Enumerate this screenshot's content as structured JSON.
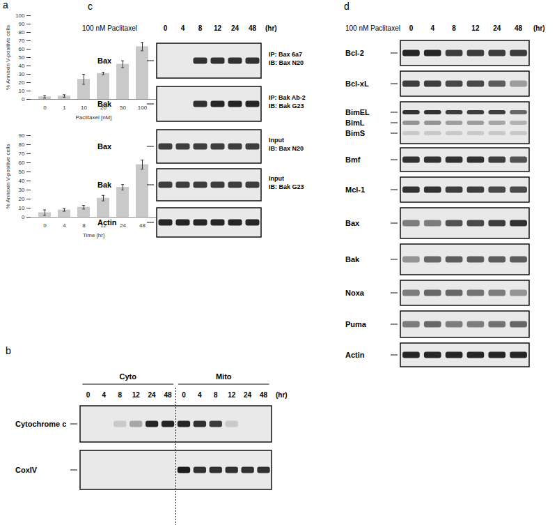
{
  "chart_data": [
    {
      "type": "bar",
      "categories": [
        "0",
        "1",
        "10",
        "20",
        "50",
        "100"
      ],
      "values": [
        3,
        4,
        24,
        31,
        42,
        63
      ],
      "errors": [
        1.5,
        1.5,
        6,
        1.5,
        4,
        5
      ],
      "x_label": "Paclitaxel [nM]",
      "y_label": "% Annexin V-positive cells",
      "ylim": [
        0,
        100
      ],
      "yticks": [
        0,
        10,
        20,
        30,
        40,
        50,
        60,
        70,
        80,
        90,
        100
      ],
      "color": "#c9c9c9",
      "grid": false
    },
    {
      "type": "bar",
      "categories": [
        "0",
        "4",
        "8",
        "12",
        "24",
        "48"
      ],
      "values": [
        5,
        8,
        11,
        21,
        33,
        58
      ],
      "errors": [
        3,
        1.5,
        2,
        3,
        3,
        5
      ],
      "x_label": "Time [hr]",
      "y_label": "% Annexin V-positive cells",
      "ylim": [
        0,
        90
      ],
      "yticks": [
        0,
        10,
        20,
        30,
        40,
        50,
        60,
        70,
        80,
        90
      ],
      "color": "#c9c9c9",
      "grid": false
    }
  ],
  "figure": {
    "panel_a": {
      "label": "a"
    },
    "panel_b": {
      "label": "b",
      "groups": [
        {
          "name": "Cyto",
          "lanes": [
            0,
            4,
            8,
            12,
            24,
            48
          ]
        },
        {
          "name": "Mito",
          "lanes": [
            0,
            4,
            8,
            12,
            24,
            48
          ]
        }
      ],
      "unit": "(hr)",
      "boxes": [
        {
          "bands": [
            {
              "label": "Cytochrome c",
              "intensity": [
                0,
                0,
                0.15,
                0.3,
                0.9,
                0.9,
                0.9,
                0.85,
                0.8,
                0.15,
                0,
                0
              ]
            }
          ]
        },
        {
          "bands": [
            {
              "label": "CoxIV",
              "intensity": [
                0,
                0,
                0,
                0,
                0,
                0,
                0.95,
                0.85,
                0.85,
                0.85,
                0.85,
                0.85
              ]
            }
          ]
        }
      ]
    },
    "panel_c": {
      "label": "c",
      "treatment": "100 nM Paclitaxel",
      "lanes": [
        0,
        4,
        8,
        12,
        24,
        48
      ],
      "unit": "(hr)",
      "boxes": [
        {
          "bands": [
            {
              "label": "Bax",
              "intensity": [
                0,
                0,
                0.85,
                0.85,
                0.85,
                0.85
              ]
            }
          ],
          "note": [
            "IP: Bax 6a7",
            "IB: Bax N20"
          ]
        },
        {
          "bands": [
            {
              "label": "Bak",
              "intensity": [
                0,
                0,
                0.85,
                0.9,
                0.9,
                0.9
              ]
            }
          ],
          "note": [
            "IP: Bak Ab-2",
            "IB: Bak G23"
          ]
        },
        {
          "bands": [
            {
              "label": "Bax",
              "intensity": [
                0.8,
                0.8,
                0.8,
                0.8,
                0.8,
                0.8
              ]
            }
          ],
          "note": [
            "Input",
            "IB: Bax N20"
          ]
        },
        {
          "bands": [
            {
              "label": "Bak",
              "intensity": [
                0.8,
                0.8,
                0.8,
                0.8,
                0.8,
                0.8
              ]
            }
          ],
          "note": [
            "Input",
            "IB: Bak G23"
          ]
        },
        {
          "bands": [
            {
              "label": "Actin",
              "intensity": [
                0.9,
                0.9,
                0.9,
                0.9,
                0.9,
                0.9
              ]
            }
          ]
        }
      ]
    },
    "panel_d": {
      "label": "d",
      "treatment": "100 nM Paclitaxel",
      "lanes": [
        0,
        4,
        8,
        12,
        24,
        48
      ],
      "unit": "(hr)",
      "boxes": [
        {
          "bands": [
            {
              "label": "Bcl-2",
              "intensity": [
                0.9,
                0.9,
                0.8,
                0.8,
                0.8,
                0.8
              ]
            }
          ]
        },
        {
          "bands": [
            {
              "label": "Bcl-xL",
              "intensity": [
                0.8,
                0.8,
                0.75,
                0.75,
                0.65,
                0.35
              ]
            }
          ]
        },
        {
          "bands": [
            {
              "label": "BimEL",
              "intensity": [
                0.85,
                0.85,
                0.8,
                0.8,
                0.8,
                0.6
              ]
            },
            {
              "label": "BimL",
              "intensity": [
                0.4,
                0.4,
                0.35,
                0.35,
                0.3,
                0.25
              ]
            },
            {
              "label": "BimS",
              "intensity": [
                0.15,
                0.15,
                0.15,
                0.15,
                0.15,
                0.15
              ]
            }
          ]
        },
        {
          "bands": [
            {
              "label": "Bmf",
              "intensity": [
                0.85,
                0.85,
                0.85,
                0.85,
                0.8,
                0.7
              ]
            }
          ]
        },
        {
          "bands": [
            {
              "label": "Mcl-1",
              "intensity": [
                0.85,
                0.85,
                0.8,
                0.8,
                0.75,
                0.75
              ]
            }
          ]
        },
        {
          "bands": [
            {
              "label": "Bax",
              "intensity": [
                0.5,
                0.5,
                0.7,
                0.75,
                0.8,
                0.85
              ]
            }
          ]
        },
        {
          "bands": [
            {
              "label": "Bak",
              "intensity": [
                0.4,
                0.6,
                0.65,
                0.65,
                0.65,
                0.65
              ]
            }
          ]
        },
        {
          "bands": [
            {
              "label": "Noxa",
              "intensity": [
                0.5,
                0.6,
                0.6,
                0.55,
                0.5,
                0.4
              ]
            }
          ]
        },
        {
          "bands": [
            {
              "label": "Puma",
              "intensity": [
                0.5,
                0.6,
                0.5,
                0.5,
                0.55,
                0.6
              ]
            }
          ]
        },
        {
          "bands": [
            {
              "label": "Actin",
              "intensity": [
                0.9,
                0.9,
                0.9,
                0.9,
                0.9,
                0.9
              ]
            }
          ]
        }
      ]
    }
  }
}
